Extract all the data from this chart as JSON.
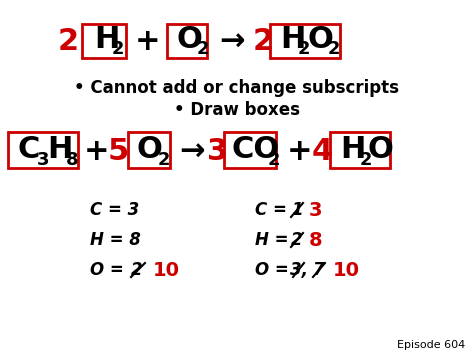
{
  "background_color": "#ffffff",
  "box_color": "#cc0000",
  "red_color": "#cc0000",
  "black_color": "#000000",
  "episode_text": "Episode 604",
  "bullet1": "Cannot add or change subscripts",
  "bullet2": "Draw boxes",
  "figsize": [
    4.74,
    3.55
  ],
  "dpi": 100
}
